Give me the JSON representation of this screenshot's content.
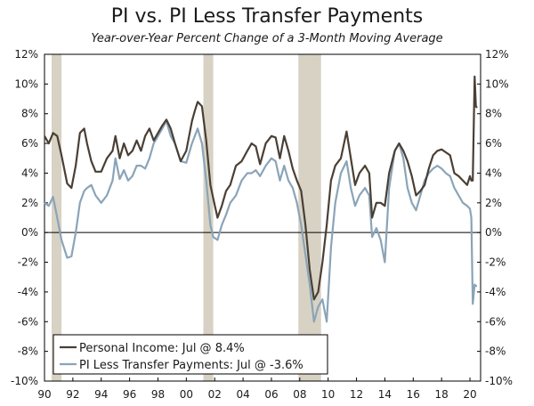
{
  "chart_data": {
    "type": "line",
    "title": "PI vs. PI Less Transfer Payments",
    "subtitle": "Year-over-Year Percent Change of a 3-Month Moving Average",
    "ylim": [
      -10,
      12
    ],
    "xlim": [
      1990,
      2020.75
    ],
    "y_ticks": [
      12,
      10,
      8,
      6,
      4,
      2,
      0,
      -2,
      -4,
      -6,
      -8,
      -10
    ],
    "y_tick_labels": [
      "12%",
      "10%",
      "8%",
      "6%",
      "4%",
      "2%",
      "0%",
      "-2%",
      "-4%",
      "-6%",
      "-8%",
      "-10%"
    ],
    "x_ticks": [
      1990,
      1992,
      1994,
      1996,
      1998,
      2000,
      2002,
      2004,
      2006,
      2008,
      2010,
      2012,
      2014,
      2016,
      2018,
      2020
    ],
    "x_tick_labels": [
      "90",
      "92",
      "94",
      "96",
      "98",
      "00",
      "02",
      "04",
      "06",
      "08",
      "10",
      "12",
      "14",
      "16",
      "18",
      "20"
    ],
    "recessions": [
      [
        1990.5,
        1991.2
      ],
      [
        2001.2,
        2001.9
      ],
      [
        2007.9,
        2009.5
      ]
    ],
    "grid": false,
    "legend_position": "bottom-left",
    "colors": {
      "pi": "#4a3f35",
      "pi_less": "#8aa4b8",
      "recession": "#d8d2c4"
    },
    "series": [
      {
        "name": "Personal Income: Jul @ 8.4%",
        "color": "#4a3f35",
        "x": [
          1990.0,
          1990.3,
          1990.6,
          1990.9,
          1991.2,
          1991.6,
          1991.9,
          1992.2,
          1992.5,
          1992.8,
          1993.0,
          1993.3,
          1993.6,
          1994.0,
          1994.4,
          1994.8,
          1995.0,
          1995.3,
          1995.6,
          1995.9,
          1996.2,
          1996.5,
          1996.8,
          1997.1,
          1997.4,
          1997.7,
          1998.0,
          1998.3,
          1998.6,
          1998.9,
          1999.2,
          1999.6,
          2000.0,
          2000.4,
          2000.6,
          2000.8,
          2001.1,
          2001.4,
          2001.7,
          2001.9,
          2002.2,
          2002.5,
          2002.8,
          2003.1,
          2003.5,
          2003.9,
          2004.3,
          2004.6,
          2004.9,
          2005.2,
          2005.6,
          2006.0,
          2006.3,
          2006.6,
          2006.9,
          2007.2,
          2007.5,
          2007.8,
          2008.1,
          2008.4,
          2008.7,
          2009.0,
          2009.3,
          2009.6,
          2009.9,
          2010.2,
          2010.5,
          2010.9,
          2011.3,
          2011.6,
          2011.9,
          2012.2,
          2012.6,
          2012.9,
          2013.1,
          2013.4,
          2013.7,
          2014.0,
          2014.3,
          2014.7,
          2015.0,
          2015.3,
          2015.6,
          2015.9,
          2016.2,
          2016.5,
          2016.8,
          2017.1,
          2017.4,
          2017.7,
          2018.0,
          2018.3,
          2018.6,
          2018.9,
          2019.2,
          2019.5,
          2019.8,
          2020.0,
          2020.1,
          2020.2,
          2020.33,
          2020.42,
          2020.5
        ],
        "values": [
          6.5,
          6.0,
          6.7,
          6.5,
          5.2,
          3.3,
          3.0,
          4.5,
          6.7,
          7.0,
          6.0,
          4.8,
          4.1,
          4.1,
          5.0,
          5.5,
          6.5,
          5.0,
          6.0,
          5.2,
          5.5,
          6.2,
          5.5,
          6.5,
          7.0,
          6.2,
          6.7,
          7.2,
          7.6,
          7.0,
          6.0,
          4.8,
          5.5,
          7.5,
          8.2,
          8.8,
          8.5,
          6.2,
          3.2,
          2.3,
          1.0,
          1.8,
          2.8,
          3.2,
          4.5,
          4.8,
          5.5,
          6.0,
          5.8,
          4.6,
          6.0,
          6.5,
          6.4,
          5.0,
          6.5,
          5.5,
          4.3,
          3.5,
          2.8,
          0.5,
          -2.5,
          -4.5,
          -4.0,
          -2.0,
          0.5,
          3.5,
          4.5,
          5.0,
          6.8,
          5.0,
          3.2,
          4.0,
          4.5,
          4.0,
          1.0,
          2.0,
          2.0,
          1.8,
          4.0,
          5.5,
          6.0,
          5.5,
          4.8,
          3.8,
          2.5,
          2.8,
          3.2,
          4.3,
          5.2,
          5.5,
          5.6,
          5.4,
          5.2,
          4.0,
          3.8,
          3.5,
          3.2,
          3.8,
          3.5,
          3.5,
          10.5,
          8.5,
          8.4
        ]
      },
      {
        "name": "PI Less Transfer Payments: Jul @ -3.6%",
        "color": "#8aa4b8",
        "x": [
          1990.0,
          1990.3,
          1990.6,
          1990.9,
          1991.2,
          1991.6,
          1991.9,
          1992.2,
          1992.5,
          1992.8,
          1993.0,
          1993.3,
          1993.6,
          1994.0,
          1994.4,
          1994.8,
          1995.0,
          1995.3,
          1995.6,
          1995.9,
          1996.2,
          1996.5,
          1996.8,
          1997.1,
          1997.4,
          1997.7,
          1998.0,
          1998.3,
          1998.6,
          1998.9,
          1999.2,
          1999.6,
          2000.0,
          2000.4,
          2000.6,
          2000.8,
          2001.1,
          2001.4,
          2001.7,
          2001.9,
          2002.2,
          2002.5,
          2002.8,
          2003.1,
          2003.5,
          2003.9,
          2004.3,
          2004.6,
          2004.9,
          2005.2,
          2005.6,
          2006.0,
          2006.3,
          2006.6,
          2006.9,
          2007.2,
          2007.5,
          2007.8,
          2008.1,
          2008.4,
          2008.7,
          2009.0,
          2009.3,
          2009.6,
          2009.9,
          2010.2,
          2010.5,
          2010.9,
          2011.3,
          2011.6,
          2011.9,
          2012.2,
          2012.6,
          2012.9,
          2013.1,
          2013.4,
          2013.7,
          2014.0,
          2014.3,
          2014.7,
          2015.0,
          2015.3,
          2015.6,
          2015.9,
          2016.2,
          2016.5,
          2016.8,
          2017.1,
          2017.4,
          2017.7,
          2018.0,
          2018.3,
          2018.6,
          2018.9,
          2019.2,
          2019.5,
          2019.8,
          2020.0,
          2020.1,
          2020.2,
          2020.33,
          2020.42,
          2020.5
        ],
        "values": [
          2.0,
          1.8,
          2.4,
          1.0,
          -0.5,
          -1.7,
          -1.6,
          0.0,
          2.0,
          2.8,
          3.0,
          3.2,
          2.5,
          2.0,
          2.5,
          3.5,
          5.0,
          3.6,
          4.2,
          3.5,
          3.8,
          4.5,
          4.5,
          4.3,
          5.0,
          6.0,
          6.5,
          7.0,
          7.5,
          6.5,
          6.0,
          4.8,
          4.7,
          6.0,
          6.5,
          7.0,
          6.0,
          3.5,
          0.5,
          -0.3,
          -0.5,
          0.5,
          1.2,
          2.0,
          2.5,
          3.5,
          4.0,
          4.0,
          4.2,
          3.8,
          4.5,
          5.0,
          4.8,
          3.5,
          4.5,
          3.5,
          3.0,
          2.0,
          0.5,
          -1.5,
          -3.5,
          -6.0,
          -5.0,
          -4.5,
          -6.0,
          -1.0,
          2.0,
          4.0,
          4.8,
          3.0,
          1.8,
          2.5,
          3.0,
          2.5,
          -0.3,
          0.3,
          -0.5,
          -2.0,
          3.0,
          5.5,
          6.0,
          5.0,
          3.0,
          2.0,
          1.5,
          2.5,
          3.5,
          4.0,
          4.3,
          4.5,
          4.3,
          4.0,
          3.8,
          3.0,
          2.5,
          2.0,
          1.8,
          1.6,
          1.0,
          -4.8,
          -3.5,
          -3.6,
          -3.6
        ]
      }
    ]
  }
}
